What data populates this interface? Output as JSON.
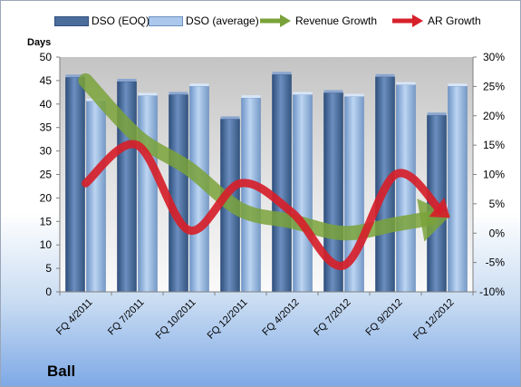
{
  "brand": "Ball",
  "colors": {
    "dso_eoq": "#4a6d9c",
    "dso_avg": "#8eb3e0",
    "revenue_growth": "#7aa23a",
    "ar_growth": "#d6202a"
  },
  "legend": [
    {
      "key": "dso_eoq",
      "label": "DSO (EOQ)",
      "kind": "bar"
    },
    {
      "key": "dso_avg",
      "label": "DSO (average)",
      "kind": "bar"
    },
    {
      "key": "revenue_growth",
      "label": "Revenue Growth",
      "kind": "arrow"
    },
    {
      "key": "ar_growth",
      "label": "AR Growth",
      "kind": "arrow"
    }
  ],
  "chart_data": {
    "type": "bar",
    "categories": [
      "FQ 4/2011",
      "FQ 7/2011",
      "FQ 10/2011",
      "FQ 12/2011",
      "FQ 4/2012",
      "FQ 7/2012",
      "FQ 9/2012",
      "FQ 12/2012"
    ],
    "ylabel": "Days",
    "ylim": [
      0,
      50
    ],
    "yticks": [
      0,
      5,
      10,
      15,
      20,
      25,
      30,
      35,
      40,
      45,
      50
    ],
    "y2lim": [
      -10,
      30
    ],
    "y2ticks": [
      "-10%",
      "-5%",
      "0%",
      "5%",
      "10%",
      "15%",
      "20%",
      "25%",
      "30%"
    ],
    "series": [
      {
        "name": "DSO (EOQ)",
        "type": "bar",
        "axis": "left",
        "values": [
          45.7,
          44.8,
          42.0,
          36.8,
          46.3,
          42.4,
          45.8,
          37.6
        ]
      },
      {
        "name": "DSO (average)",
        "type": "bar",
        "axis": "left",
        "values": [
          40.6,
          41.8,
          43.8,
          41.3,
          42.0,
          41.6,
          44.1,
          43.8
        ]
      },
      {
        "name": "Revenue Growth",
        "type": "line",
        "axis": "right",
        "unit": "%",
        "values": [
          26.0,
          16.5,
          11.0,
          4.0,
          2.0,
          0.0,
          1.5,
          3.0
        ]
      },
      {
        "name": "AR Growth",
        "type": "line",
        "axis": "right",
        "unit": "%",
        "values": [
          8.5,
          15.0,
          0.5,
          8.5,
          3.5,
          -5.5,
          10.0,
          3.0
        ]
      }
    ],
    "grid": false,
    "legend_position": "top"
  }
}
